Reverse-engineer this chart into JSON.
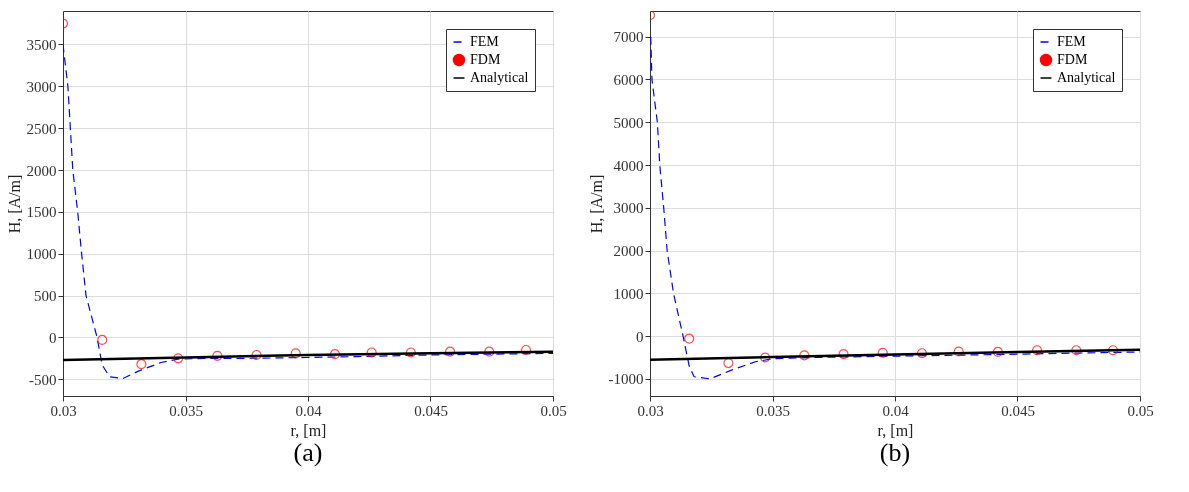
{
  "chart_data": [
    {
      "type": "line",
      "xlabel": "r, [m]",
      "ylabel": "H, [A/m]",
      "annotations": [
        "(a)"
      ],
      "xlim": [
        0.03,
        0.05
      ],
      "xticks": [
        0.03,
        0.035,
        0.04,
        0.045,
        0.05
      ],
      "ylim": [
        -700,
        3900
      ],
      "yticks": [
        -500,
        0,
        500,
        1000,
        1500,
        2000,
        2500,
        3000,
        3500
      ],
      "grid": true,
      "legend": "top right",
      "series": [
        {
          "name": "FEM",
          "type": "line",
          "line_style": "dashed",
          "color": "#0000ff",
          "x": [
            0.03,
            0.0302,
            0.0303,
            0.0304,
            0.0306,
            0.03076,
            0.03094,
            0.03139,
            0.0316,
            0.0319,
            0.03245,
            0.0331,
            0.034,
            0.0347,
            0.0358,
            0.0374,
            0.0399,
            0.0419,
            0.0449,
            0.05
          ],
          "values": [
            3500,
            3000,
            2500,
            2000,
            1500,
            1000,
            500,
            0,
            -330,
            -470,
            -490,
            -400,
            -300,
            -260,
            -250,
            -250,
            -240,
            -230,
            -210,
            -190
          ]
        },
        {
          "name": "FDM",
          "type": "scatter",
          "marker": "circle",
          "color": "#ff0000",
          "x": [
            0.03,
            0.0316,
            0.0332,
            0.0347,
            0.0363,
            0.0379,
            0.0395,
            0.0411,
            0.0426,
            0.0442,
            0.0458,
            0.0474,
            0.0489
          ],
          "values": [
            3750,
            -30,
            -320,
            -250,
            -220,
            -210,
            -190,
            -200,
            -180,
            -180,
            -170,
            -170,
            -150
          ]
        },
        {
          "name": "Analytical",
          "type": "line",
          "line_style": "solid",
          "color": "#000000",
          "x": [
            0.03,
            0.035,
            0.04,
            0.045,
            0.05
          ],
          "values": [
            -270,
            -240,
            -210,
            -190,
            -170
          ]
        }
      ]
    },
    {
      "type": "line",
      "xlabel": "r, [m]",
      "ylabel": "H, [A/m]",
      "annotations": [
        "(b)"
      ],
      "xlim": [
        0.03,
        0.05
      ],
      "xticks": [
        0.03,
        0.035,
        0.04,
        0.045,
        0.05
      ],
      "ylim": [
        -1400,
        7600
      ],
      "yticks": [
        -1000,
        0,
        1000,
        2000,
        3000,
        4000,
        5000,
        6000,
        7000
      ],
      "grid": true,
      "legend": "top right",
      "series": [
        {
          "name": "FEM",
          "type": "line",
          "line_style": "dashed",
          "color": "#0000ff",
          "x": [
            0.03003,
            0.03008,
            0.0303,
            0.0304,
            0.03056,
            0.0307,
            0.03096,
            0.03135,
            0.0316,
            0.0318,
            0.03245,
            0.0333,
            0.0343,
            0.035,
            0.0366,
            0.0397,
            0.0421,
            0.0452,
            0.05
          ],
          "values": [
            7000,
            6000,
            5000,
            4000,
            3000,
            2000,
            1000,
            0,
            -700,
            -950,
            -1000,
            -800,
            -600,
            -530,
            -500,
            -470,
            -450,
            -420,
            -370
          ]
        },
        {
          "name": "FDM",
          "type": "scatter",
          "marker": "circle",
          "color": "#ff0000",
          "x": [
            0.03,
            0.0316,
            0.0332,
            0.0347,
            0.0363,
            0.0379,
            0.0395,
            0.0411,
            0.0426,
            0.0442,
            0.0458,
            0.0474,
            0.0489
          ],
          "values": [
            7500,
            -60,
            -630,
            -500,
            -450,
            -420,
            -390,
            -400,
            -360,
            -370,
            -330,
            -330,
            -330
          ]
        },
        {
          "name": "Analytical",
          "type": "line",
          "line_style": "solid",
          "color": "#000000",
          "x": [
            0.03,
            0.035,
            0.04,
            0.045,
            0.05
          ],
          "values": [
            -550,
            -490,
            -430,
            -370,
            -320
          ]
        }
      ]
    }
  ]
}
